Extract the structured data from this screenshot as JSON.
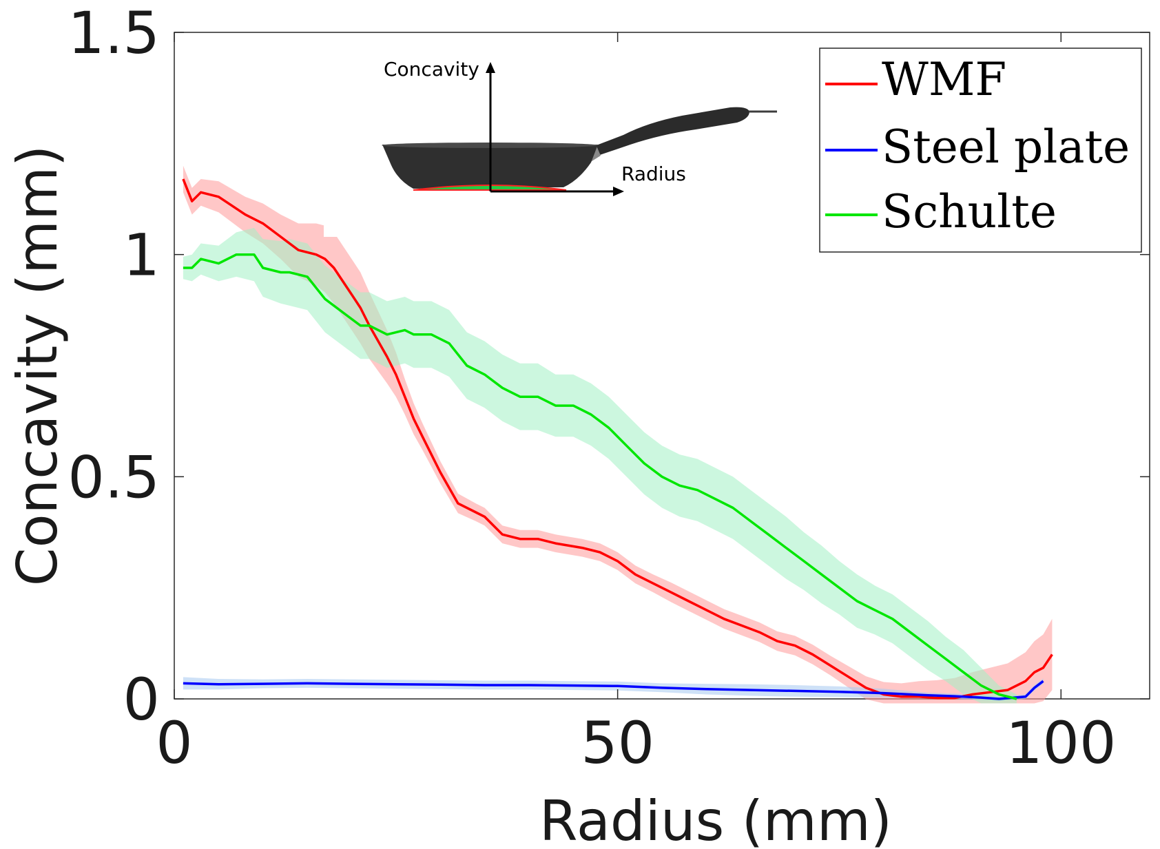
{
  "chart_data": {
    "type": "line",
    "title": "",
    "xlabel": "Radius (mm)",
    "ylabel": "Concavity (mm)",
    "xlim": [
      0,
      110
    ],
    "ylim": [
      0,
      1.5
    ],
    "xticks": [
      0,
      50,
      100
    ],
    "xtick_labels": [
      "0",
      "50",
      "100"
    ],
    "yticks": [
      0,
      0.5,
      1,
      1.5
    ],
    "ytick_labels": [
      "0",
      "0.5",
      "1",
      "1.5"
    ],
    "grid": false,
    "legend_position": "top-right",
    "series": [
      {
        "name": "WMF",
        "color": "#ff0000",
        "band_color": "#ff9999",
        "x": [
          1,
          2,
          3,
          5,
          8,
          10,
          12,
          14,
          16,
          17,
          18,
          19,
          20,
          21,
          22,
          24,
          25,
          26,
          27,
          28,
          30,
          32,
          34,
          35,
          37,
          39,
          41,
          43,
          46,
          48,
          50,
          52,
          54,
          56,
          58,
          60,
          62,
          64,
          66,
          68,
          70,
          72,
          74,
          76,
          78,
          80,
          82,
          84,
          86,
          88,
          90,
          92,
          94,
          96,
          97,
          98,
          99
        ],
        "values": [
          1.17,
          1.12,
          1.14,
          1.13,
          1.09,
          1.07,
          1.04,
          1.01,
          1.0,
          0.99,
          0.97,
          0.94,
          0.91,
          0.88,
          0.84,
          0.77,
          0.73,
          0.68,
          0.63,
          0.59,
          0.51,
          0.44,
          0.42,
          0.41,
          0.37,
          0.36,
          0.36,
          0.35,
          0.34,
          0.33,
          0.31,
          0.28,
          0.26,
          0.24,
          0.22,
          0.2,
          0.18,
          0.165,
          0.15,
          0.13,
          0.12,
          0.1,
          0.075,
          0.05,
          0.025,
          0.01,
          0.005,
          0.005,
          0.002,
          0.002,
          0.01,
          0.015,
          0.02,
          0.04,
          0.06,
          0.07,
          0.1
        ],
        "band_width": [
          0.03,
          0.03,
          0.03,
          0.035,
          0.04,
          0.045,
          0.05,
          0.06,
          0.07,
          0.075,
          0.08,
          0.08,
          0.08,
          0.08,
          0.075,
          0.06,
          0.05,
          0.04,
          0.035,
          0.03,
          0.025,
          0.022,
          0.02,
          0.02,
          0.02,
          0.02,
          0.02,
          0.02,
          0.02,
          0.02,
          0.02,
          0.02,
          0.02,
          0.022,
          0.022,
          0.022,
          0.022,
          0.022,
          0.022,
          0.022,
          0.022,
          0.022,
          0.022,
          0.024,
          0.026,
          0.028,
          0.03,
          0.035,
          0.04,
          0.045,
          0.05,
          0.055,
          0.06,
          0.065,
          0.07,
          0.075,
          0.08
        ]
      },
      {
        "name": "Steel plate",
        "color": "#0000ff",
        "band_color": "#a6c8f0",
        "x": [
          1,
          5,
          10,
          15,
          20,
          25,
          30,
          35,
          40,
          45,
          50,
          55,
          60,
          65,
          70,
          75,
          80,
          85,
          88,
          91,
          93,
          96,
          97,
          98
        ],
        "values": [
          0.035,
          0.033,
          0.034,
          0.035,
          0.034,
          0.033,
          0.032,
          0.031,
          0.031,
          0.03,
          0.029,
          0.025,
          0.022,
          0.02,
          0.018,
          0.016,
          0.013,
          0.008,
          0.006,
          0.003,
          0.0,
          0.005,
          0.025,
          0.04
        ],
        "band_width": [
          0.014,
          0.012,
          0.01,
          0.01,
          0.01,
          0.01,
          0.01,
          0.01,
          0.01,
          0.01,
          0.01,
          0.01,
          0.012,
          0.013,
          0.013,
          0.012,
          0.01,
          0.006,
          0.006,
          0.006,
          0.005,
          0.005,
          0.006,
          0.006
        ]
      },
      {
        "name": "Schulte",
        "color": "#00e600",
        "band_color": "#a3f0c4",
        "x": [
          1,
          2,
          3,
          5,
          7,
          9,
          10,
          12,
          13,
          15,
          17,
          19,
          21,
          22,
          24,
          26,
          27,
          29,
          31,
          33,
          35,
          37,
          39,
          41,
          43,
          45,
          47,
          49,
          51,
          53,
          55,
          57,
          59,
          61,
          63,
          65,
          67,
          69,
          71,
          73,
          75,
          77,
          79,
          81,
          83,
          85,
          87,
          89,
          91,
          93,
          95
        ],
        "values": [
          0.97,
          0.97,
          0.99,
          0.98,
          1.0,
          1.0,
          0.97,
          0.96,
          0.96,
          0.95,
          0.9,
          0.87,
          0.84,
          0.84,
          0.82,
          0.83,
          0.82,
          0.82,
          0.8,
          0.75,
          0.73,
          0.7,
          0.68,
          0.68,
          0.66,
          0.66,
          0.64,
          0.61,
          0.57,
          0.53,
          0.5,
          0.48,
          0.47,
          0.45,
          0.43,
          0.4,
          0.37,
          0.34,
          0.31,
          0.28,
          0.25,
          0.22,
          0.2,
          0.18,
          0.15,
          0.12,
          0.09,
          0.06,
          0.03,
          0.01,
          0.0
        ],
        "band_width": [
          0.025,
          0.03,
          0.035,
          0.04,
          0.05,
          0.06,
          0.065,
          0.07,
          0.075,
          0.075,
          0.075,
          0.075,
          0.075,
          0.075,
          0.075,
          0.075,
          0.075,
          0.075,
          0.075,
          0.075,
          0.075,
          0.075,
          0.075,
          0.075,
          0.07,
          0.07,
          0.07,
          0.07,
          0.07,
          0.07,
          0.07,
          0.07,
          0.07,
          0.07,
          0.07,
          0.07,
          0.07,
          0.07,
          0.065,
          0.065,
          0.06,
          0.06,
          0.055,
          0.055,
          0.055,
          0.055,
          0.05,
          0.05,
          0.04,
          0.02,
          0.01
        ]
      }
    ],
    "inset": {
      "description": "frying pan photo",
      "concavity_label": "Concavity",
      "radius_label": "Radius"
    }
  }
}
